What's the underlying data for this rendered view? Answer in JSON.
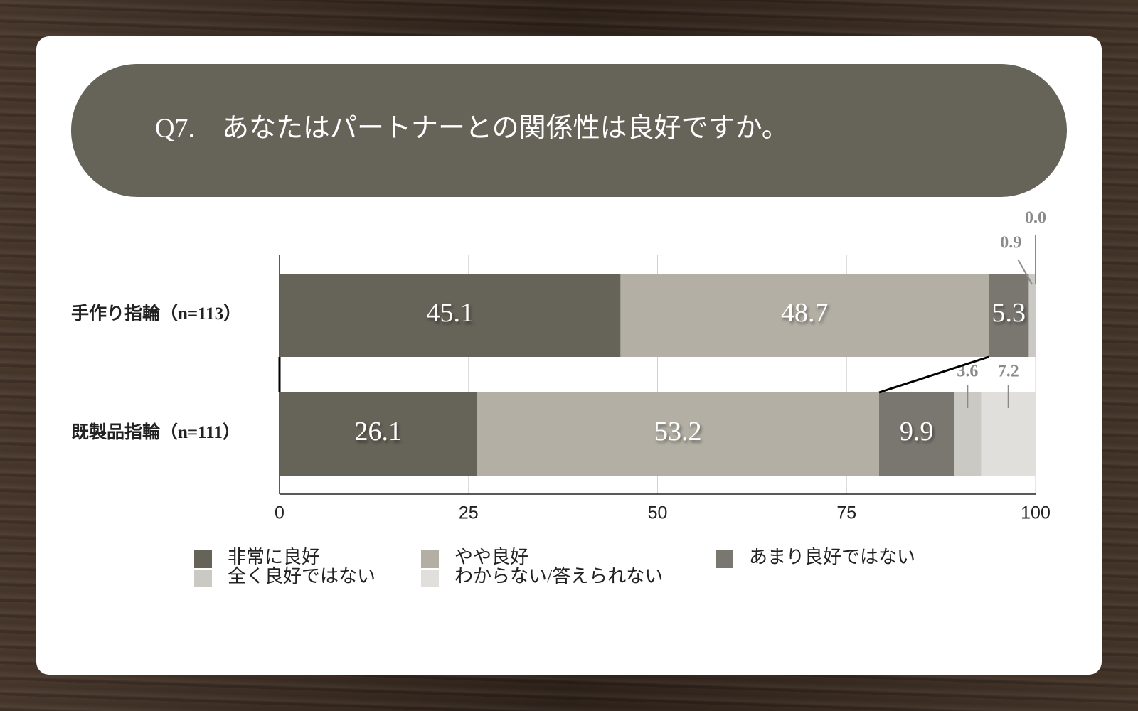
{
  "chart_data": {
    "type": "bar",
    "orientation": "horizontal",
    "stacked": true,
    "title": "Q7.　あなたはパートナーとの関係性は良好ですか。",
    "categories": [
      "手作り指輪（n=113）",
      "既製品指輪（n=111）"
    ],
    "series": [
      {
        "name": "非常に良好",
        "color": "#666358",
        "values": [
          45.1,
          26.1
        ]
      },
      {
        "name": "やや良好",
        "color": "#b3afa4",
        "values": [
          48.7,
          53.2
        ]
      },
      {
        "name": "あまり良好ではない",
        "color": "#7a7770",
        "values": [
          5.3,
          9.9
        ]
      },
      {
        "name": "全く良好ではない",
        "color": "#cbc9c4",
        "values": [
          0.9,
          3.6
        ]
      },
      {
        "name": "わからない/答えられない",
        "color": "#e0dfdc",
        "values": [
          0,
          7.2
        ],
        "value_labels": [
          "0.0",
          "7.2"
        ]
      }
    ],
    "xlim": [
      0,
      100
    ],
    "xticks": [
      0,
      25,
      50,
      75,
      100
    ],
    "grid": true
  }
}
